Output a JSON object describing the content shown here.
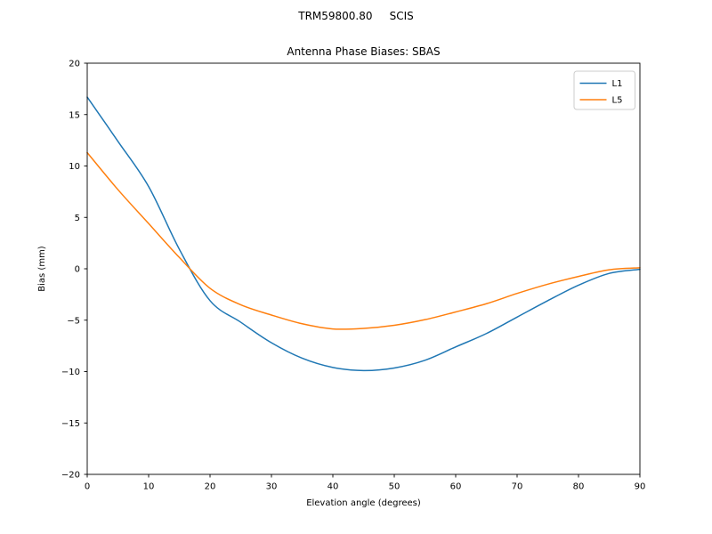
{
  "figure": {
    "background": "#ffffff",
    "text_color": "#000000",
    "frame_color": "#000000"
  },
  "chart_data": {
    "type": "line",
    "suptitle": "TRM59800.80     SCIS",
    "title": "Antenna Phase Biases: SBAS",
    "xlabel": "Elevation angle (degrees)",
    "ylabel": "Bias (mm)",
    "xlim": [
      0,
      90
    ],
    "ylim": [
      -20,
      20
    ],
    "xticks": [
      0,
      10,
      20,
      30,
      40,
      50,
      60,
      70,
      80,
      90
    ],
    "xticklabels": [
      "0",
      "10",
      "20",
      "30",
      "40",
      "50",
      "60",
      "70",
      "80",
      "90"
    ],
    "yticks": [
      -20,
      -15,
      -10,
      -5,
      0,
      5,
      10,
      15,
      20
    ],
    "yticklabels": [
      "−20",
      "−15",
      "−10",
      "−5",
      "0",
      "5",
      "10",
      "15",
      "20"
    ],
    "grid": false,
    "x": [
      0,
      5,
      10,
      15,
      20,
      25,
      30,
      35,
      40,
      45,
      50,
      55,
      60,
      65,
      70,
      75,
      80,
      85,
      90
    ],
    "series": [
      {
        "name": "L1",
        "color": "#1f77b4",
        "values": [
          16.7,
          12.4,
          8.0,
          1.9,
          -3.1,
          -5.2,
          -7.2,
          -8.7,
          -9.6,
          -9.9,
          -9.65,
          -8.9,
          -7.6,
          -6.3,
          -4.7,
          -3.1,
          -1.6,
          -0.45,
          -0.05
        ]
      },
      {
        "name": "L5",
        "color": "#ff7f0e",
        "values": [
          11.3,
          7.7,
          4.4,
          1.1,
          -1.9,
          -3.5,
          -4.5,
          -5.35,
          -5.85,
          -5.8,
          -5.5,
          -4.95,
          -4.2,
          -3.4,
          -2.4,
          -1.5,
          -0.75,
          -0.1,
          0.1
        ]
      }
    ],
    "legend": {
      "position": "upper right",
      "entries": [
        "L1",
        "L5"
      ],
      "border_color": "#cccccc"
    }
  }
}
